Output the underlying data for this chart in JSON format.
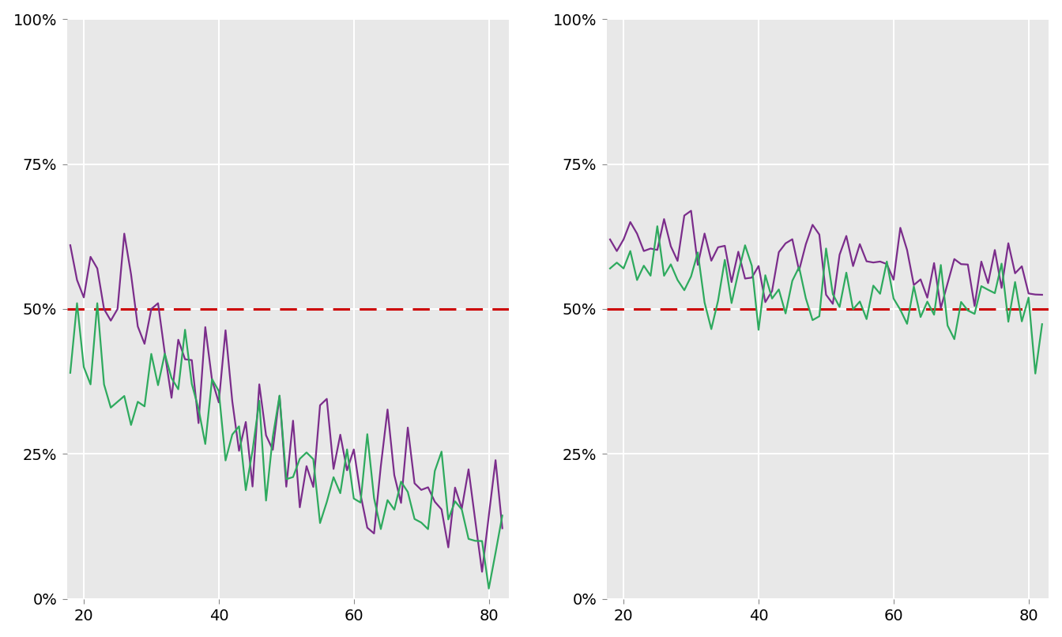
{
  "panel_bg": "#e8e8e8",
  "outer_bg": "#ffffff",
  "grid_color": "#ffffff",
  "purple_color": "#7B2D8B",
  "green_color": "#2EAA5E",
  "red_color": "#CC0000",
  "ylim": [
    0,
    1.0
  ],
  "xlim": [
    17.5,
    83
  ],
  "yticks": [
    0.0,
    0.25,
    0.5,
    0.75,
    1.0
  ],
  "xticks": [
    20,
    40,
    60,
    80
  ],
  "ref_line": 0.5,
  "line_width": 1.6,
  "tick_labelsize": 14
}
